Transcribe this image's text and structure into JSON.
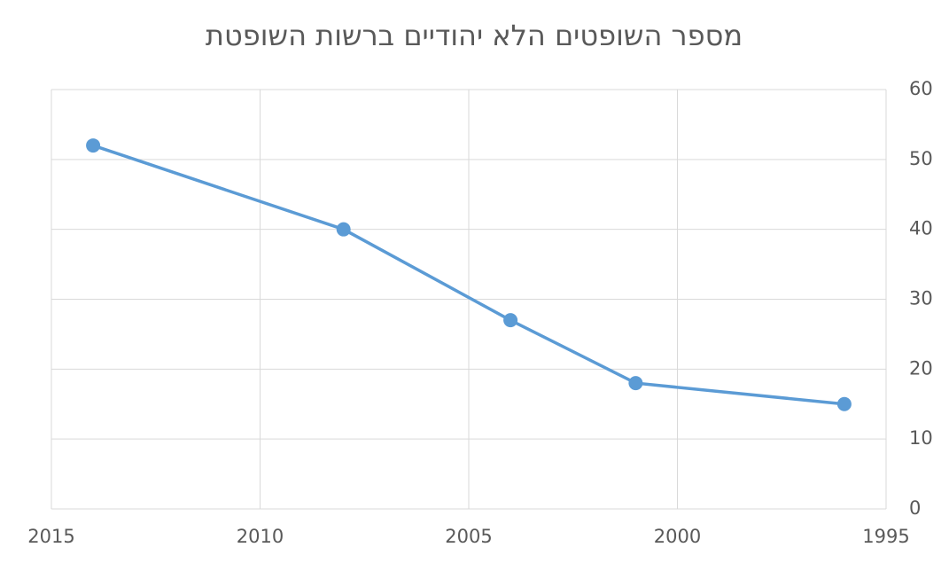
{
  "chart_data": {
    "type": "line",
    "title": "מספר השופטים הלא יהודיים ברשות השופטת",
    "x": [
      2014,
      2008,
      2004,
      2001,
      1996
    ],
    "series": [
      {
        "name": "מספר השופטים",
        "color": "#5b9bd5",
        "values": [
          52,
          40,
          27,
          18,
          15
        ]
      }
    ],
    "xlim": [
      2015,
      1995
    ],
    "xticks": [
      2015,
      2010,
      2005,
      2000,
      1995
    ],
    "ylim": [
      0,
      60
    ],
    "yticks": [
      0,
      10,
      20,
      30,
      40,
      50,
      60
    ],
    "y_axis_side": "right",
    "grid": true
  }
}
